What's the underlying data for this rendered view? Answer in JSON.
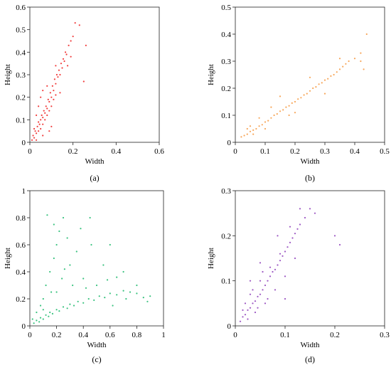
{
  "chart_data": [
    {
      "type": "scatter",
      "panel_label": "(a)",
      "xlabel": "Width",
      "ylabel": "Height",
      "xlim": [
        0,
        0.6
      ],
      "ylim": [
        0,
        0.6
      ],
      "xticks": [
        0,
        0.2,
        0.4,
        0.6
      ],
      "yticks": [
        0,
        0.1,
        0.2,
        0.3,
        0.4,
        0.5,
        0.6
      ],
      "x_tick_labels": [
        "0",
        "0.2",
        "0.4",
        "0.6"
      ],
      "y_tick_labels": [
        "0",
        "0.1",
        "0.2",
        "0.3",
        "0.4",
        "0.5",
        "0.6"
      ],
      "color": "#ee1c1c",
      "points": [
        [
          0.01,
          0.01
        ],
        [
          0.015,
          0.03
        ],
        [
          0.02,
          0.02
        ],
        [
          0.025,
          0.05
        ],
        [
          0.03,
          0.04
        ],
        [
          0.035,
          0.07
        ],
        [
          0.04,
          0.05
        ],
        [
          0.04,
          0.09
        ],
        [
          0.045,
          0.08
        ],
        [
          0.05,
          0.1
        ],
        [
          0.05,
          0.06
        ],
        [
          0.055,
          0.12
        ],
        [
          0.06,
          0.11
        ],
        [
          0.06,
          0.08
        ],
        [
          0.065,
          0.14
        ],
        [
          0.07,
          0.13
        ],
        [
          0.07,
          0.1
        ],
        [
          0.075,
          0.16
        ],
        [
          0.08,
          0.15
        ],
        [
          0.08,
          0.12
        ],
        [
          0.085,
          0.19
        ],
        [
          0.09,
          0.18
        ],
        [
          0.09,
          0.14
        ],
        [
          0.095,
          0.22
        ],
        [
          0.1,
          0.2
        ],
        [
          0.1,
          0.16
        ],
        [
          0.105,
          0.25
        ],
        [
          0.11,
          0.23
        ],
        [
          0.11,
          0.19
        ],
        [
          0.115,
          0.28
        ],
        [
          0.12,
          0.26
        ],
        [
          0.12,
          0.21
        ],
        [
          0.125,
          0.3
        ],
        [
          0.13,
          0.29
        ],
        [
          0.135,
          0.32
        ],
        [
          0.14,
          0.3
        ],
        [
          0.145,
          0.35
        ],
        [
          0.15,
          0.33
        ],
        [
          0.155,
          0.37
        ],
        [
          0.16,
          0.36
        ],
        [
          0.165,
          0.4
        ],
        [
          0.17,
          0.39
        ],
        [
          0.18,
          0.43
        ],
        [
          0.19,
          0.45
        ],
        [
          0.2,
          0.47
        ],
        [
          0.21,
          0.53
        ],
        [
          0.23,
          0.52
        ],
        [
          0.25,
          0.27
        ],
        [
          0.26,
          0.43
        ],
        [
          0.02,
          0.06
        ],
        [
          0.03,
          0.12
        ],
        [
          0.04,
          0.16
        ],
        [
          0.05,
          0.2
        ],
        [
          0.06,
          0.23
        ],
        [
          0.08,
          0.25
        ],
        [
          0.03,
          0.01
        ],
        [
          0.06,
          0.03
        ],
        [
          0.1,
          0.07
        ],
        [
          0.14,
          0.22
        ],
        [
          0.175,
          0.34
        ],
        [
          0.19,
          0.38
        ],
        [
          0.12,
          0.34
        ],
        [
          0.09,
          0.05
        ]
      ]
    },
    {
      "type": "scatter",
      "panel_label": "(b)",
      "xlabel": "Width",
      "ylabel": "Height",
      "xlim": [
        0,
        0.5
      ],
      "ylim": [
        0,
        0.5
      ],
      "xticks": [
        0,
        0.1,
        0.2,
        0.3,
        0.4,
        0.5
      ],
      "yticks": [
        0,
        0.1,
        0.2,
        0.3,
        0.4,
        0.5
      ],
      "x_tick_labels": [
        "0",
        "0.1",
        "0.2",
        "0.3",
        "0.4",
        "0.5"
      ],
      "y_tick_labels": [
        "0",
        "0.1",
        "0.2",
        "0.3",
        "0.4",
        "0.5"
      ],
      "color": "#f6983e",
      "points": [
        [
          0.02,
          0.02
        ],
        [
          0.03,
          0.025
        ],
        [
          0.04,
          0.03
        ],
        [
          0.05,
          0.04
        ],
        [
          0.06,
          0.045
        ],
        [
          0.07,
          0.05
        ],
        [
          0.08,
          0.06
        ],
        [
          0.09,
          0.065
        ],
        [
          0.1,
          0.075
        ],
        [
          0.11,
          0.08
        ],
        [
          0.12,
          0.09
        ],
        [
          0.13,
          0.1
        ],
        [
          0.14,
          0.105
        ],
        [
          0.15,
          0.115
        ],
        [
          0.16,
          0.12
        ],
        [
          0.17,
          0.13
        ],
        [
          0.18,
          0.135
        ],
        [
          0.19,
          0.145
        ],
        [
          0.2,
          0.15
        ],
        [
          0.21,
          0.16
        ],
        [
          0.22,
          0.165
        ],
        [
          0.23,
          0.175
        ],
        [
          0.24,
          0.18
        ],
        [
          0.25,
          0.19
        ],
        [
          0.26,
          0.2
        ],
        [
          0.27,
          0.205
        ],
        [
          0.28,
          0.215
        ],
        [
          0.29,
          0.22
        ],
        [
          0.3,
          0.23
        ],
        [
          0.31,
          0.235
        ],
        [
          0.32,
          0.245
        ],
        [
          0.33,
          0.25
        ],
        [
          0.34,
          0.26
        ],
        [
          0.35,
          0.27
        ],
        [
          0.36,
          0.28
        ],
        [
          0.37,
          0.29
        ],
        [
          0.38,
          0.3
        ],
        [
          0.4,
          0.31
        ],
        [
          0.42,
          0.33
        ],
        [
          0.44,
          0.4
        ],
        [
          0.05,
          0.06
        ],
        [
          0.08,
          0.09
        ],
        [
          0.1,
          0.05
        ],
        [
          0.15,
          0.17
        ],
        [
          0.2,
          0.11
        ],
        [
          0.25,
          0.24
        ],
        [
          0.3,
          0.18
        ],
        [
          0.35,
          0.31
        ],
        [
          0.04,
          0.05
        ],
        [
          0.06,
          0.03
        ],
        [
          0.12,
          0.13
        ],
        [
          0.18,
          0.1
        ],
        [
          0.42,
          0.3
        ],
        [
          0.43,
          0.27
        ]
      ]
    },
    {
      "type": "scatter",
      "panel_label": "(c)",
      "xlabel": "Width",
      "ylabel": "Height",
      "xlim": [
        0,
        1
      ],
      "ylim": [
        0,
        1
      ],
      "xticks": [
        0,
        0.2,
        0.4,
        0.6,
        0.8,
        1
      ],
      "yticks": [
        0,
        0.2,
        0.4,
        0.6,
        0.8,
        1
      ],
      "x_tick_labels": [
        "0",
        "0.2",
        "0.4",
        "0.6",
        "0.8",
        "1"
      ],
      "y_tick_labels": [
        "0",
        "0.2",
        "0.4",
        "0.6",
        "0.8",
        "1"
      ],
      "color": "#19b86a",
      "points": [
        [
          0.03,
          0.02
        ],
        [
          0.05,
          0.04
        ],
        [
          0.07,
          0.03
        ],
        [
          0.08,
          0.06
        ],
        [
          0.1,
          0.05
        ],
        [
          0.12,
          0.08
        ],
        [
          0.14,
          0.07
        ],
        [
          0.15,
          0.1
        ],
        [
          0.17,
          0.09
        ],
        [
          0.2,
          0.12
        ],
        [
          0.22,
          0.11
        ],
        [
          0.25,
          0.14
        ],
        [
          0.28,
          0.13
        ],
        [
          0.3,
          0.16
        ],
        [
          0.33,
          0.15
        ],
        [
          0.36,
          0.18
        ],
        [
          0.4,
          0.17
        ],
        [
          0.44,
          0.2
        ],
        [
          0.48,
          0.19
        ],
        [
          0.52,
          0.22
        ],
        [
          0.56,
          0.21
        ],
        [
          0.6,
          0.24
        ],
        [
          0.65,
          0.23
        ],
        [
          0.7,
          0.26
        ],
        [
          0.75,
          0.25
        ],
        [
          0.8,
          0.24
        ],
        [
          0.85,
          0.21
        ],
        [
          0.9,
          0.22
        ],
        [
          0.12,
          0.3
        ],
        [
          0.15,
          0.4
        ],
        [
          0.18,
          0.5
        ],
        [
          0.2,
          0.6
        ],
        [
          0.22,
          0.7
        ],
        [
          0.25,
          0.8
        ],
        [
          0.13,
          0.82
        ],
        [
          0.3,
          0.45
        ],
        [
          0.35,
          0.55
        ],
        [
          0.4,
          0.35
        ],
        [
          0.45,
          0.8
        ],
        [
          0.5,
          0.3
        ],
        [
          0.55,
          0.45
        ],
        [
          0.6,
          0.6
        ],
        [
          0.65,
          0.36
        ],
        [
          0.7,
          0.4
        ],
        [
          0.8,
          0.3
        ],
        [
          0.1,
          0.2
        ],
        [
          0.16,
          0.25
        ],
        [
          0.24,
          0.35
        ],
        [
          0.28,
          0.65
        ],
        [
          0.08,
          0.15
        ],
        [
          0.05,
          0.1
        ],
        [
          0.38,
          0.72
        ],
        [
          0.42,
          0.28
        ],
        [
          0.58,
          0.34
        ],
        [
          0.46,
          0.6
        ],
        [
          0.18,
          0.75
        ],
        [
          0.26,
          0.42
        ],
        [
          0.32,
          0.3
        ],
        [
          0.62,
          0.15
        ],
        [
          0.72,
          0.2
        ],
        [
          0.88,
          0.18
        ],
        [
          0.02,
          0.05
        ],
        [
          0.1,
          0.12
        ],
        [
          0.2,
          0.25
        ]
      ]
    },
    {
      "type": "scatter",
      "panel_label": "(d)",
      "xlabel": "Width",
      "ylabel": "Height",
      "xlim": [
        0,
        0.3
      ],
      "ylim": [
        0,
        0.3
      ],
      "xticks": [
        0,
        0.1,
        0.2,
        0.3
      ],
      "yticks": [
        0,
        0.1,
        0.2,
        0.3
      ],
      "x_tick_labels": [
        "0",
        "0.1",
        "0.2",
        "0.3"
      ],
      "y_tick_labels": [
        "0",
        "0.1",
        "0.2",
        "0.3"
      ],
      "color": "#8b3ab8",
      "points": [
        [
          0.01,
          0.01
        ],
        [
          0.015,
          0.02
        ],
        [
          0.02,
          0.025
        ],
        [
          0.025,
          0.035
        ],
        [
          0.03,
          0.04
        ],
        [
          0.035,
          0.05
        ],
        [
          0.04,
          0.055
        ],
        [
          0.045,
          0.065
        ],
        [
          0.05,
          0.07
        ],
        [
          0.055,
          0.08
        ],
        [
          0.06,
          0.09
        ],
        [
          0.065,
          0.1
        ],
        [
          0.07,
          0.11
        ],
        [
          0.075,
          0.12
        ],
        [
          0.08,
          0.125
        ],
        [
          0.085,
          0.135
        ],
        [
          0.09,
          0.145
        ],
        [
          0.095,
          0.155
        ],
        [
          0.1,
          0.165
        ],
        [
          0.105,
          0.175
        ],
        [
          0.11,
          0.185
        ],
        [
          0.115,
          0.195
        ],
        [
          0.12,
          0.205
        ],
        [
          0.125,
          0.215
        ],
        [
          0.13,
          0.225
        ],
        [
          0.14,
          0.24
        ],
        [
          0.15,
          0.26
        ],
        [
          0.16,
          0.25
        ],
        [
          0.2,
          0.2
        ],
        [
          0.21,
          0.18
        ],
        [
          0.02,
          0.05
        ],
        [
          0.03,
          0.07
        ],
        [
          0.04,
          0.03
        ],
        [
          0.05,
          0.1
        ],
        [
          0.06,
          0.05
        ],
        [
          0.07,
          0.13
        ],
        [
          0.08,
          0.08
        ],
        [
          0.09,
          0.16
        ],
        [
          0.1,
          0.11
        ],
        [
          0.11,
          0.22
        ],
        [
          0.12,
          0.15
        ],
        [
          0.13,
          0.26
        ],
        [
          0.015,
          0.035
        ],
        [
          0.025,
          0.015
        ],
        [
          0.035,
          0.08
        ],
        [
          0.045,
          0.04
        ],
        [
          0.055,
          0.12
        ],
        [
          0.065,
          0.06
        ],
        [
          0.085,
          0.2
        ],
        [
          0.1,
          0.06
        ],
        [
          0.03,
          0.1
        ],
        [
          0.05,
          0.14
        ]
      ]
    }
  ]
}
